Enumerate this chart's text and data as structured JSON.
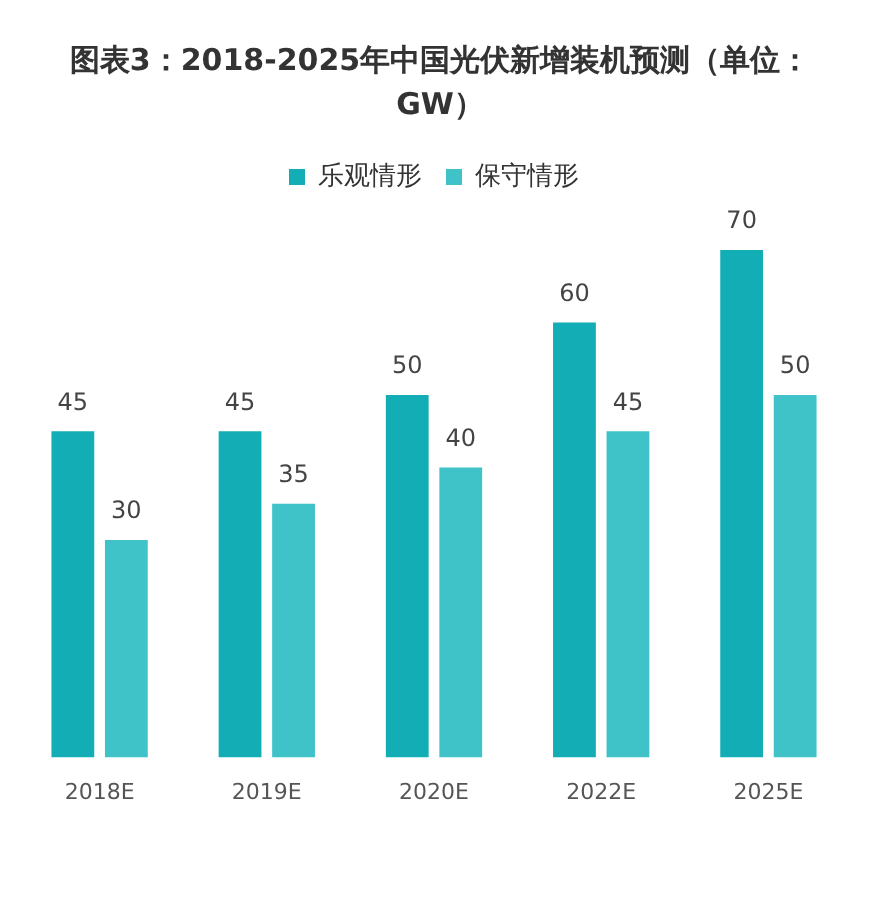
{
  "chart_data": {
    "type": "bar",
    "title": "图表3：2018-2025年中国光伏新增装机预测（单位：GW）",
    "categories": [
      "2018E",
      "2019E",
      "2020E",
      "2022E",
      "2025E"
    ],
    "series": [
      {
        "name": "乐观情形",
        "color": "#13adb5",
        "values": [
          45,
          45,
          50,
          60,
          70
        ]
      },
      {
        "name": "保守情形",
        "color": "#3fc3c8",
        "values": [
          30,
          35,
          40,
          45,
          50
        ]
      }
    ],
    "data_labels": true,
    "legend": "top",
    "grid": false
  }
}
